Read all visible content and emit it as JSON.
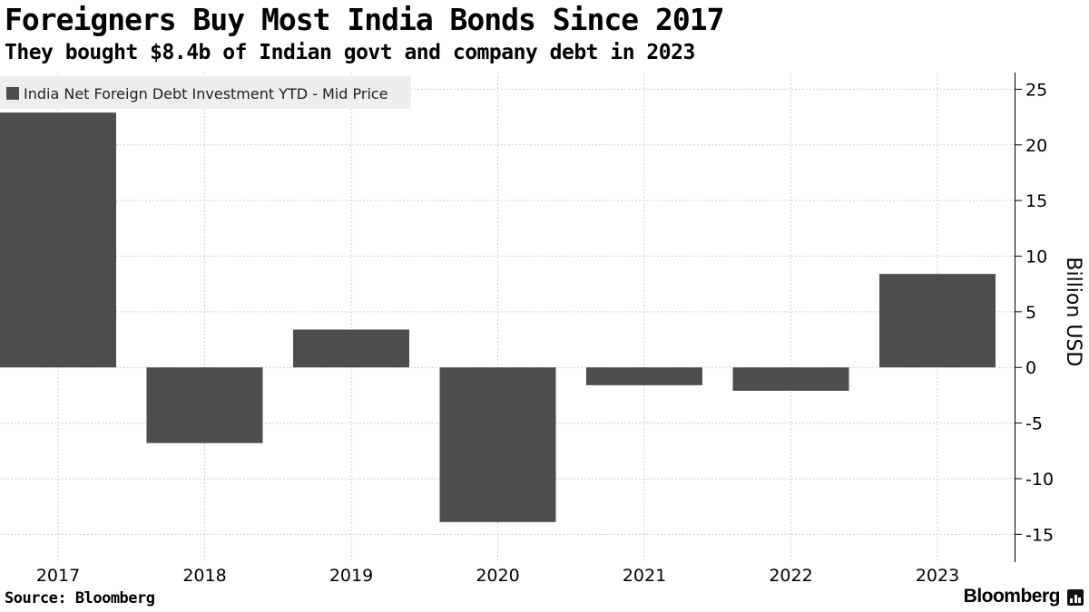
{
  "header": {
    "title": "Foreigners Buy Most India Bonds Since 2017",
    "subtitle": "They bought $8.4b of Indian govt and company debt in 2023"
  },
  "footer": {
    "source": "Source: Bloomberg",
    "brand": "Bloomberg"
  },
  "chart_data": {
    "type": "bar",
    "title": "Foreigners Buy Most India Bonds Since 2017",
    "subtitle": "They bought $8.4b of Indian govt and company debt in 2023",
    "categories": [
      "2017",
      "2018",
      "2019",
      "2020",
      "2021",
      "2022",
      "2023"
    ],
    "series": [
      {
        "name": "India Net Foreign Debt Investment YTD - Mid Price",
        "values": [
          22.9,
          -6.8,
          3.4,
          -13.9,
          -1.6,
          -2.1,
          8.4
        ],
        "color": "#4d4d4d"
      }
    ],
    "ylabel": "Billion USD",
    "xlabel": "",
    "ylim": [
      -17.5,
      26.5
    ],
    "yticks": [
      25,
      20,
      15,
      10,
      5,
      0,
      -5,
      -10,
      -15
    ],
    "ytick_labels": [
      "25",
      "20",
      "15",
      "10",
      "5",
      "0",
      "-5",
      "-10",
      "-15"
    ],
    "grid": true,
    "legend": "top-left",
    "axis_side": "right"
  }
}
